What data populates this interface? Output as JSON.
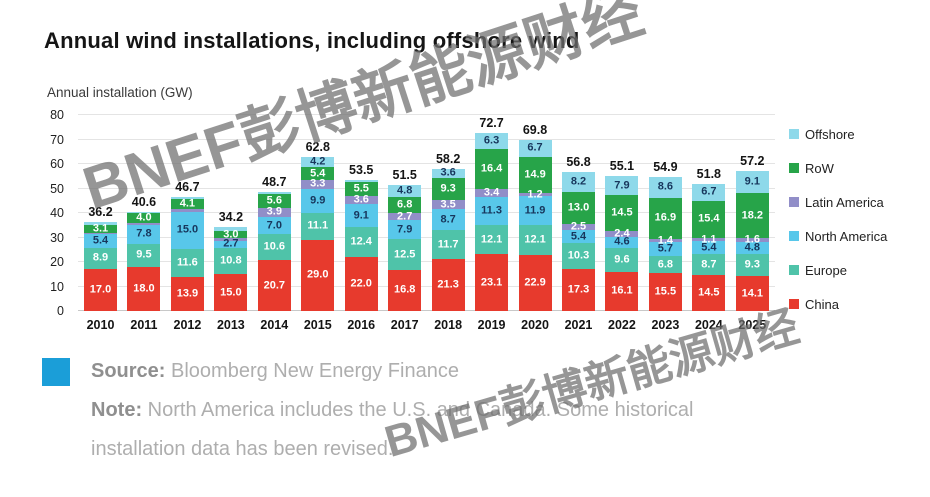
{
  "page": {
    "watermark": "BNEF彭博新能源财经"
  },
  "chart_data": {
    "type": "bar",
    "stacked": true,
    "title": "Annual wind installations, including offshore wind",
    "ylabel": "Annual installation (GW)",
    "xlabel": "",
    "ylim": [
      0,
      80
    ],
    "yticks": [
      0,
      10,
      20,
      30,
      40,
      50,
      60,
      70,
      80
    ],
    "grid": true,
    "legend_position": "right",
    "categories": [
      "2010",
      "2011",
      "2012",
      "2013",
      "2014",
      "2015",
      "2016",
      "2017",
      "2018",
      "2019",
      "2020",
      "2021",
      "2022",
      "2023",
      "2024",
      "2025"
    ],
    "totals": [
      36.2,
      40.6,
      46.7,
      34.2,
      48.7,
      62.8,
      53.5,
      51.5,
      58.2,
      72.7,
      69.8,
      56.8,
      55.1,
      54.9,
      51.8,
      57.2
    ],
    "series": [
      {
        "name": "China",
        "color": "#e73a2d",
        "label_color": "#ffffff",
        "values": [
          17.0,
          18.0,
          13.9,
          15.0,
          20.7,
          29.0,
          22.0,
          16.8,
          21.3,
          23.1,
          22.9,
          17.3,
          16.1,
          15.5,
          14.5,
          14.1
        ],
        "labels": [
          "17.0",
          "18.0",
          "13.9",
          "15.0",
          "20.7",
          "29.0",
          "22.0",
          "16.8",
          "21.3",
          "23.1",
          "22.9",
          "17.3",
          "16.1",
          "15.5",
          "14.5",
          "14.1"
        ]
      },
      {
        "name": "Europe",
        "color": "#4fc3a9",
        "label_color": "#ffffff",
        "values": [
          8.9,
          9.5,
          11.6,
          10.8,
          10.6,
          11.1,
          12.4,
          12.5,
          11.7,
          12.1,
          12.1,
          10.3,
          9.6,
          6.8,
          8.7,
          9.3
        ],
        "labels": [
          "8.9",
          "9.5",
          "11.6",
          "10.8",
          "10.6",
          "11.1",
          "12.4",
          "12.5",
          "11.7",
          "12.1",
          "12.1",
          "10.3",
          "9.6",
          "6.8",
          "8.7",
          "9.3"
        ]
      },
      {
        "name": "North America",
        "color": "#58c7ea",
        "label_color": "#17365c",
        "values": [
          5.4,
          7.8,
          15.0,
          2.7,
          7.0,
          9.9,
          9.1,
          7.9,
          8.7,
          11.3,
          11.9,
          5.4,
          4.6,
          5.7,
          5.4,
          4.8
        ],
        "labels": [
          "5.4",
          "7.8",
          "15.0",
          "2.7",
          "7.0",
          "9.9",
          "9.1",
          "7.9",
          "8.7",
          "11.3",
          "11.9",
          "5.4",
          "4.6",
          "5.7",
          "5.4",
          "4.8"
        ]
      },
      {
        "name": "Latin America",
        "color": "#918ec8",
        "label_color": "#ffffff",
        "values": [
          0.7,
          0.6,
          1.1,
          1.2,
          3.9,
          3.3,
          3.6,
          2.7,
          3.5,
          3.4,
          1.2,
          2.5,
          2.4,
          1.4,
          1.1,
          1.6
        ],
        "labels": [
          null,
          null,
          null,
          null,
          "3.9",
          "3.3",
          "3.6",
          "2.7",
          "3.5",
          "3.4",
          "1.2",
          "2.5",
          "2.4",
          "1.4",
          "1.1",
          "1.6"
        ]
      },
      {
        "name": "RoW",
        "color": "#27a449",
        "label_color": "#ffffff",
        "values": [
          3.1,
          4.0,
          4.1,
          3.0,
          5.6,
          5.4,
          5.5,
          6.8,
          9.3,
          16.4,
          14.9,
          13.0,
          14.5,
          16.9,
          15.4,
          18.2
        ],
        "labels": [
          "3.1",
          "4.0",
          "4.1",
          "3.0",
          "5.6",
          "5.4",
          "5.5",
          "6.8",
          "9.3",
          "16.4",
          "14.9",
          "13.0",
          "14.5",
          "16.9",
          "15.4",
          "18.2"
        ]
      },
      {
        "name": "Offshore",
        "color": "#8ed9ea",
        "label_color": "#17365c",
        "values": [
          1.1,
          0.7,
          1.0,
          1.5,
          0.9,
          4.2,
          0.9,
          4.8,
          3.6,
          6.3,
          6.7,
          8.2,
          7.9,
          8.6,
          6.7,
          9.1
        ],
        "labels": [
          null,
          null,
          null,
          null,
          null,
          "4.2",
          null,
          "4.8",
          "3.6",
          "6.3",
          "6.7",
          "8.2",
          "7.9",
          "8.6",
          "6.7",
          "9.1"
        ]
      }
    ],
    "legend": [
      {
        "label": "Offshore",
        "color": "#8ed9ea"
      },
      {
        "label": "RoW",
        "color": "#27a449"
      },
      {
        "label": "Latin America",
        "color": "#918ec8"
      },
      {
        "label": "North America",
        "color": "#58c7ea"
      },
      {
        "label": "Europe",
        "color": "#4fc3a9"
      },
      {
        "label": "China",
        "color": "#e73a2d"
      }
    ]
  },
  "source": {
    "icon_color": "#1b9ed8",
    "source_label": "Source:",
    "source_text": " Bloomberg New Energy Finance",
    "note_label": "Note:",
    "note_text": " North America includes the U.S. and Canada. Some historical installation data has been revised."
  }
}
